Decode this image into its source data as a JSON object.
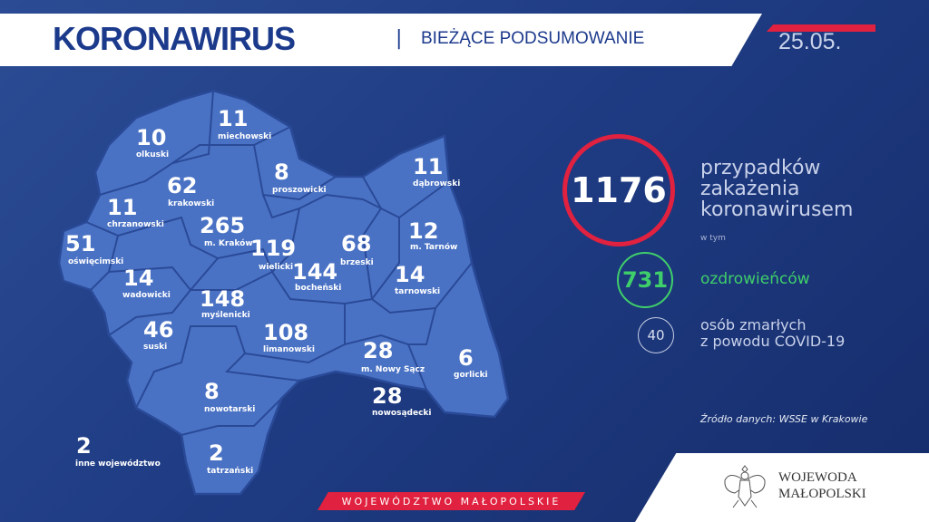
{
  "header": {
    "title": "KORONAWIRUS",
    "separator": "|",
    "subtitle": "BIEŻĄCE PODSUMOWANIE",
    "date": "25.05."
  },
  "map": {
    "districts": [
      {
        "name": "olkuski",
        "count": "10"
      },
      {
        "name": "miechowski",
        "count": "11"
      },
      {
        "name": "krakowski",
        "count": "62"
      },
      {
        "name": "proszowicki",
        "count": "8"
      },
      {
        "name": "dąbrowski",
        "count": "11"
      },
      {
        "name": "chrzanowski",
        "count": "11"
      },
      {
        "name": "m. Kraków",
        "count": "265"
      },
      {
        "name": "wielicki",
        "count": "119"
      },
      {
        "name": "brzeski",
        "count": "68"
      },
      {
        "name": "m. Tarnów",
        "count": "12"
      },
      {
        "name": "oświęcimski",
        "count": "51"
      },
      {
        "name": "bocheński",
        "count": "144"
      },
      {
        "name": "wadowicki",
        "count": "14"
      },
      {
        "name": "tarnowski",
        "count": "14"
      },
      {
        "name": "myślenicki",
        "count": "148"
      },
      {
        "name": "suski",
        "count": "46"
      },
      {
        "name": "limanowski",
        "count": "108"
      },
      {
        "name": "m. Nowy Sącz",
        "count": "28"
      },
      {
        "name": "gorlicki",
        "count": "6"
      },
      {
        "name": "nowotarski",
        "count": "8"
      },
      {
        "name": "nowosądecki",
        "count": "28"
      },
      {
        "name": "inne województwo",
        "count": "2"
      },
      {
        "name": "tatrzański",
        "count": "2"
      }
    ],
    "fill": "#4a72c4",
    "border": "#2a4a98"
  },
  "summary": {
    "total": "1176",
    "total_label": "przypadków zakażenia koronawirusem",
    "of_which": "w tym",
    "recovered": "731",
    "recovered_label": "ozdrowieńców",
    "deaths": "40",
    "deaths_label_1": "osób zmarłych",
    "deaths_label_2": "z powodu COVID-19",
    "source": "Źródło danych: WSSE w Krakowie"
  },
  "footer": {
    "region": "WOJEWÓDZTWO MAŁOPOLSKIE",
    "voivode_1": "WOJEWODA",
    "voivode_2": "MAŁOPOLSKI"
  },
  "colors": {
    "red": "#e0213f",
    "green": "#3fcf6a",
    "navy": "#1c3a8c"
  }
}
